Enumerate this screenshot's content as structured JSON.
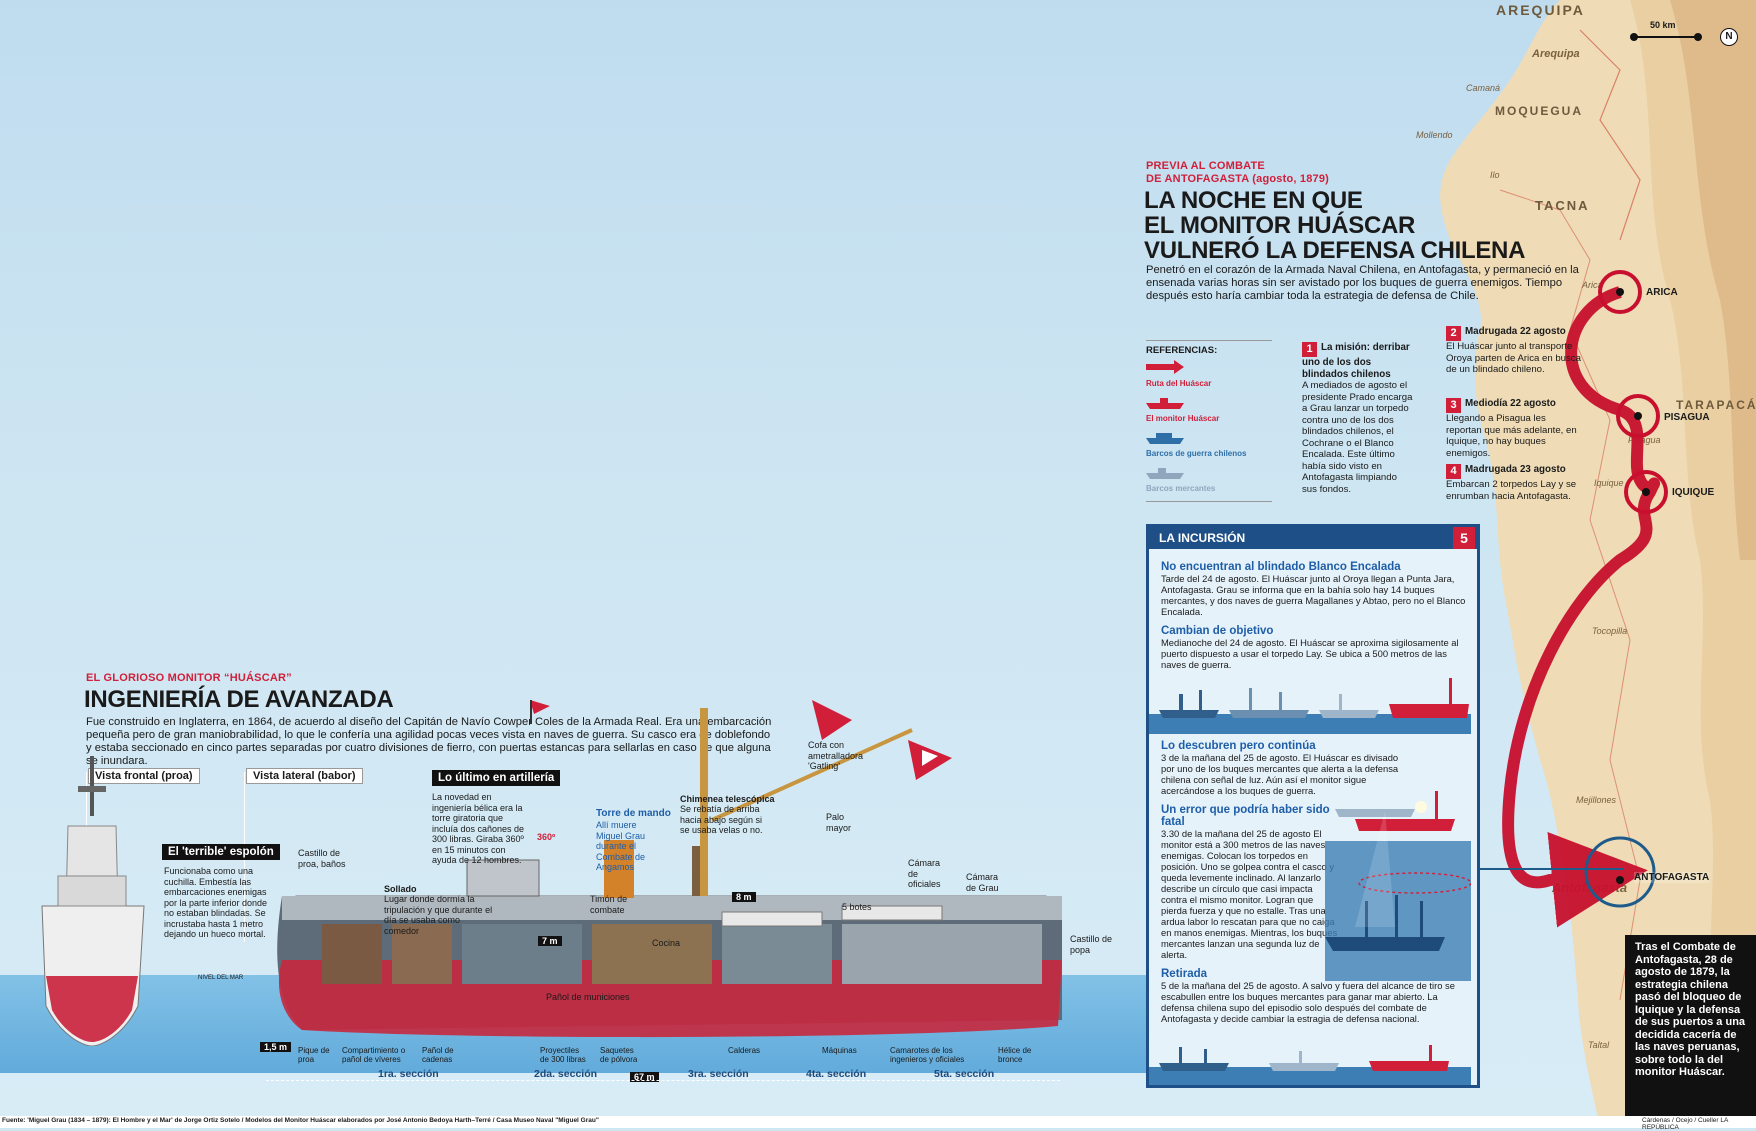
{
  "map": {
    "regions": [
      "AREQUIPA",
      "MOQUEGUA",
      "TACNA",
      "TARAPACÁ"
    ],
    "cities": [
      "Arequipa",
      "Camaná",
      "Mollendo",
      "Ilo",
      "Arica",
      "Pisagua",
      "Iquique",
      "Antofagasta",
      "Tocopilla",
      "Mejillones",
      "Taltal"
    ],
    "scale": "50 km",
    "north": "N"
  },
  "previa": {
    "kicker_line1": "PREVIA AL COMBATE",
    "kicker_line2": "DE ANTOFAGASTA (agosto, 1879)",
    "title_line1": "LA NOCHE EN QUE",
    "title_line2": "EL MONITOR HUÁSCAR",
    "title_line3": "VULNERÓ LA DEFENSA CHILENA",
    "intro": "Penetró en el corazón de la Armada Naval Chilena, en Antofagasta, y permaneció en la ensenada varias horas sin ser avistado por los buques de guerra enemigos. Tiempo después esto haría cambiar toda la estrategia de defensa de Chile."
  },
  "legend": {
    "title": "REFERENCIAS:",
    "items": [
      "Ruta del Huáscar",
      "El monitor Huáscar",
      "Barcos de guerra chilenos",
      "Barcos mercantes"
    ],
    "colors": [
      "#d11f3a",
      "#d11f3a",
      "#2f6fa8",
      "#8fa7bd"
    ]
  },
  "steps": [
    {
      "n": "1",
      "head": "La misión: derribar uno de los dos blindados chilenos",
      "text": "A mediados de agosto el presidente Prado encarga a Grau lanzar un torpedo contra uno de los dos blindados chilenos, el Cochrane o el Blanco Encalada. Este último había sido visto en Antofagasta limpiando sus fondos."
    },
    {
      "n": "2",
      "head": "Madrugada 22 agosto",
      "text": "El Huáscar junto al transporte Oroya parten de Arica en busca de un blindado chileno."
    },
    {
      "n": "3",
      "head": "Mediodía 22 agosto",
      "text": "Llegando a Pisagua les reportan que más adelante, en Iquique, no hay buques enemigos."
    },
    {
      "n": "4",
      "head": "Madrugada 23 agosto",
      "text": "Embarcan 2 torpedos Lay y se enrumban hacia Antofagasta."
    }
  ],
  "route_cities": [
    "ARICA",
    "PISAGUA",
    "IQUIQUE",
    "ANTOFAGASTA"
  ],
  "incursion": {
    "title": "LA INCURSIÓN",
    "n": "5",
    "blocks": [
      {
        "head": "No encuentran al blindado Blanco Encalada",
        "text": "Tarde del 24 de agosto. El Huáscar junto al Oroya llegan a Punta Jara, Antofagasta. Grau se informa que en la bahía solo hay 14 buques mercantes, y dos naves de guerra Magallanes y Abtao, pero no el Blanco Encalada."
      },
      {
        "head": "Cambian de objetivo",
        "text": "Medianoche del 24 de agosto. El Huáscar se aproxima sigilosamente al puerto dispuesto a usar el torpedo Lay. Se ubica a 500 metros de las naves de guerra."
      },
      {
        "head": "Lo descubren pero continúa",
        "text": "3 de la mañana del 25 de agosto. El Huáscar es divisado por uno de los buques mercantes que alerta a la defensa chilena con señal de luz. Aún así el monitor sigue acercándose a los buques de guerra."
      },
      {
        "head": "Un error que podría haber sido fatal",
        "text": "3.30 de la mañana del 25 de agosto El monitor está a 300 metros de las naves enemigas. Colocan los torpedos en posición. Uno se golpea contra el casco y queda levemente inclinado. Al lanzarlo describe un círculo que casi impacta contra el mismo monitor. Logran que pierda fuerza y que no estalle. Tras una ardua labor lo rescatan para que no caiga en manos enemigas. Mientras, los buques mercantes lanzan una segunda luz de alerta."
      },
      {
        "head": "Retirada",
        "text": "5 de la mañana del 25 de agosto. A salvo y fuera del alcance de tiro se escabullen entre los buques mercantes para ganar mar abierto. La defensa chilena supo del episodio solo después del combate de Antofagasta y decide cambiar la estragia de defensa nacional."
      }
    ]
  },
  "final_note": "Tras el Combate de Antofagasta, 28 de agosto de 1879, la estrategia chilena pasó del bloqueo de Iquique y la defensa de sus puertos a una decidida cacería de las naves peruanas, sobre todo la del monitor Huáscar.",
  "ship": {
    "kicker": "EL GLORIOSO MONITOR “HUÁSCAR”",
    "title": "INGENIERÍA DE AVANZADA",
    "intro": "Fue construido en Inglaterra, en 1864, de acuerdo al diseño del Capitán de Navío Cowper Coles de la Armada Real. Era una embarcación pequeña pero de gran maniobrabilidad, lo que le confería una agilidad pocas veces vista en naves de guerra. Su casco era de doblefondo y estaba seccionado en cinco partes separadas por cuatro divisiones de fierro, con puertas estancas para sellarlas en caso de que alguna se inundara.",
    "view_front": "Vista frontal (proa)",
    "view_side": "Vista lateral (babor)",
    "espolon_title": "El 'terrible' espolón",
    "espolon_text": "Funcionaba como una cuchilla. Embestía las embarcaciones enemigas por la parte inferior donde no estaban blindadas. Se incrustaba hasta 1 metro dejando un hueco mortal.",
    "artilleria_title": "Lo último en artillería",
    "artilleria_text": "La novedad en ingeniería bélica era la torre giratoria que incluía dos cañones de 300 libras. Giraba 360º en 15 minutos con ayuda de 12 hombres.",
    "torre_title": "Torre de mando",
    "torre_text": "Allí muere Miguel Grau durante el Combate de Angamos",
    "chimenea_title": "Chimenea telescópica",
    "chimenea_text": "Se rebatía de arriba hacia abajo según si se usaba velas o no.",
    "sollado_title": "Sollado",
    "sollado_text": "Lugar donde dormía la tripulación y que durante el día se usaba como comedor",
    "labels": {
      "castillo_proa": "Castillo de proa, baños",
      "cofa": "Cofa con ametralladora 'Gatling'",
      "palo": "Palo mayor",
      "camara_oficiales": "Cámara de oficiales",
      "camara_grau": "Cámara de Grau",
      "botes": "5 botes",
      "castillo_popa": "Castillo de popa",
      "timon": "Timón de combate",
      "cocina": "Cocina",
      "panol": "Pañol de municiones",
      "nivel": "NIVEL DEL MAR",
      "deg": "360º",
      "m7": "7 m",
      "m8": "8 m",
      "m15": "1,5 m",
      "m67": "67 m",
      "pique": "Pique de proa",
      "compart": "Compartimiento o pañol de víveres",
      "cadenas": "Pañol de cadenas",
      "proyectiles": "Proyectiles de 300 libras",
      "saquetes": "Saquetes de pólvora",
      "calderas": "Calderas",
      "maquinas": "Máquinas",
      "camarotes": "Camarotes de los ingenieros y oficiales",
      "helice": "Hélice de bronce"
    },
    "sections": [
      "1ra. sección",
      "2da. sección",
      "3ra. sección",
      "4ta. sección",
      "5ta. sección"
    ]
  },
  "footer": {
    "source": "Fuente: 'Miguel Grau (1834 – 1879): El Hombre y el Mar' de Jorge Ortiz Sotelo / Modelos del Monitor Huáscar elaborados por José Antonio Bedoya Harth–Terré / Casa Museo Naval \"Miguel Grau\"",
    "credits": "Cárdenas / Ocejo / Cueller LA REPÚBLICA"
  }
}
